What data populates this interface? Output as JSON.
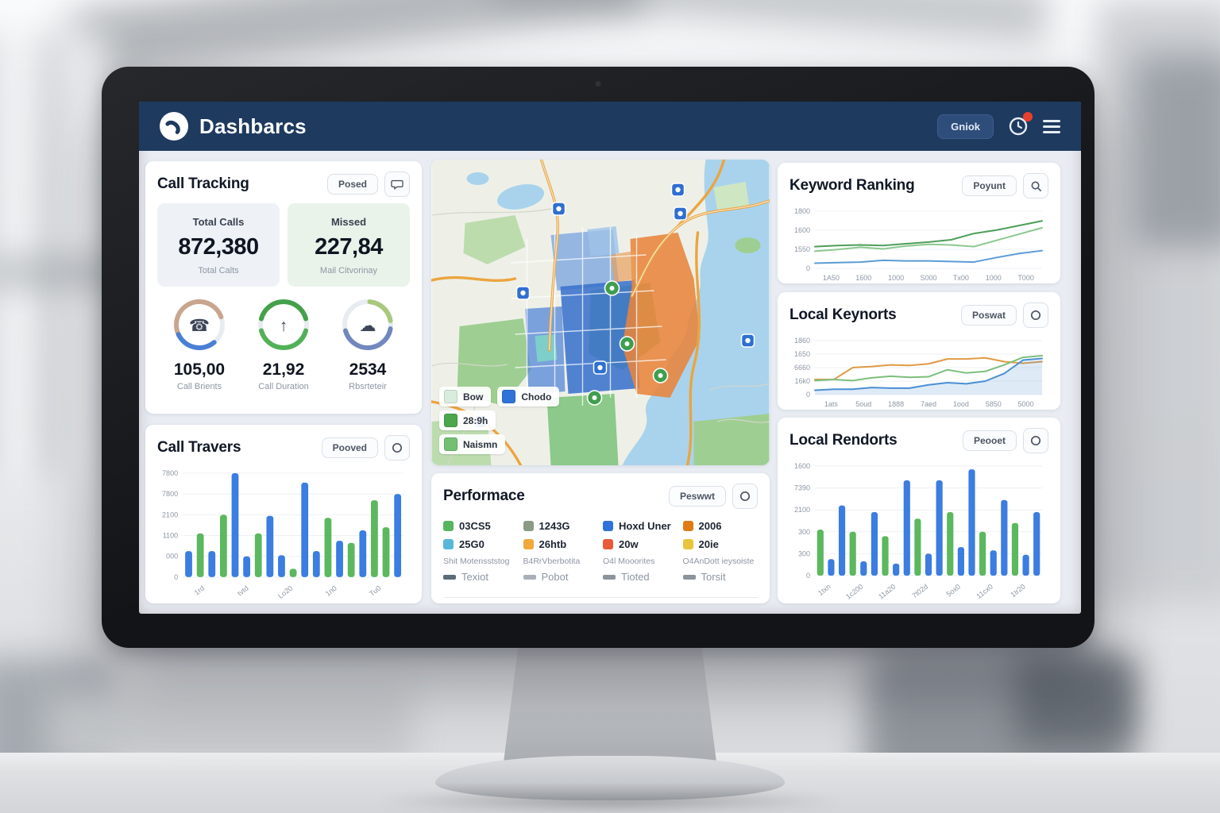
{
  "colors": {
    "header_navy": "#1e3a5f",
    "panel_bg": "#ffffff",
    "dashboard_bg": "#e9edf3",
    "bar_blue": "#3b7de0",
    "bar_green": "#5cb85e",
    "line_dark_green": "#4e9e5a",
    "line_light_green": "#8cc88f",
    "line_blue": "#5b9bd5",
    "line_orange": "#e09a45",
    "notification_red": "#e8402f"
  },
  "header": {
    "title": "Dashbarcs",
    "logo_icon": "phone-icon",
    "action_button": "Gniok",
    "icons": [
      "clock-icon",
      "menu-icon"
    ]
  },
  "panels": {
    "call_tracking": {
      "title": "Call Tracking",
      "button": "Posed",
      "action_icon": "chat-icon",
      "stats": [
        {
          "label": "Total Calls",
          "value": "872,380",
          "sub": "Total Calts",
          "bg": "#eef2f7"
        },
        {
          "label": "Missed",
          "value": "227,84",
          "sub": "Mail Citvorinay",
          "bg": "#e9f3ea"
        }
      ],
      "gauges": [
        {
          "value": "105,00",
          "label": "Call Brients",
          "icon": "phone-icon",
          "arcs": [
            {
              "color": "#c9a58f",
              "start": -120,
              "end": 70
            },
            {
              "color": "#4a7fd4",
              "start": 140,
              "end": 245
            }
          ]
        },
        {
          "value": "21,92",
          "label": "Call Duration",
          "icon": "arrow-up-icon",
          "arcs": [
            {
              "color": "#45a04b",
              "start": -75,
              "end": 75
            },
            {
              "color": "#52b158",
              "start": 105,
              "end": 255
            }
          ]
        },
        {
          "value": "2534",
          "label": "Rbsrteteir",
          "icon": "cloud-icon",
          "arcs": [
            {
              "color": "#a9c87c",
              "start": 5,
              "end": 80
            },
            {
              "color": "#7287bd",
              "start": 100,
              "end": 255
            }
          ]
        }
      ]
    },
    "call_travers": {
      "title": "Call Travers",
      "button": "Pooved",
      "action_icon": "circle-icon"
    },
    "map": {
      "legend": [
        {
          "label": "Bow",
          "color": "#d9ecdc"
        },
        {
          "label": "Chodo",
          "color": "#2f72d9"
        },
        {
          "label": "28:9h",
          "color": "#4ca64c"
        },
        {
          "label": "Naismn",
          "color": "#72bf72"
        }
      ]
    },
    "performance": {
      "title": "Performace",
      "button": "Peswwt",
      "action_icon": "circle-icon",
      "columns": [
        {
          "swatches": [
            {
              "color": "#56b55e",
              "label": "03CS5"
            },
            {
              "color": "#58b7d8",
              "label": "25G0"
            }
          ],
          "sub": "Shit Motensststog",
          "foot": {
            "color": "#5c6b78",
            "label": "Texiot"
          }
        },
        {
          "swatches": [
            {
              "color": "#8a9b84",
              "label": "1243G"
            },
            {
              "color": "#f2a93b",
              "label": "26htb"
            }
          ],
          "sub": "B4RrVberbotita",
          "foot": {
            "color": "#a9b0b8",
            "label": "Pobot"
          }
        },
        {
          "swatches": [
            {
              "color": "#2f72d9",
              "label": "Hoxd Uner"
            },
            {
              "color": "#e85a38",
              "label": "20w"
            }
          ],
          "sub": "O4l Mooorites",
          "foot": {
            "color": "#8b949c",
            "label": "Tioted"
          }
        },
        {
          "swatches": [
            {
              "color": "#e07b14",
              "label": "2006"
            },
            {
              "color": "#e9c53c",
              "label": "20ie"
            }
          ],
          "sub": "O4AnDott ieysoiste",
          "foot": {
            "color": "#8b949c",
            "label": "Torsit"
          }
        }
      ]
    },
    "keyword_ranking": {
      "title": "Keyword Ranking",
      "button": "Poyunt",
      "action_icon": "search-icon"
    },
    "local_keywords": {
      "title": "Local Keynorts",
      "button": "Poswat",
      "action_icon": "circle-icon"
    },
    "local_rendorts": {
      "title": "Local Rendorts",
      "button": "Peooet",
      "action_icon": "circle-icon"
    }
  },
  "chart_data": [
    {
      "id": "call_travers",
      "type": "bar",
      "title": "Call Travers",
      "yticks": [
        "7800",
        "7800",
        "2100",
        "1100",
        "000",
        "0"
      ],
      "xticks": [
        "1rd",
        "tvtd",
        "Lo20",
        "1n0",
        "Tu0"
      ],
      "rotate_x": true,
      "ylim": [
        0,
        100
      ],
      "grid": true,
      "colors": {
        "blue": "#3b7de0",
        "green": "#5cb85e"
      },
      "bars": [
        {
          "color": "blue",
          "value": 25
        },
        {
          "color": "green",
          "value": 42
        },
        {
          "color": "blue",
          "value": 25
        },
        {
          "color": "green",
          "value": 60
        },
        {
          "color": "blue",
          "value": 100
        },
        {
          "color": "blue",
          "value": 20
        },
        {
          "color": "green",
          "value": 42
        },
        {
          "color": "blue",
          "value": 59
        },
        {
          "color": "blue",
          "value": 21
        },
        {
          "color": "green",
          "value": 8
        },
        {
          "color": "blue",
          "value": 91
        },
        {
          "color": "blue",
          "value": 25
        },
        {
          "color": "green",
          "value": 57
        },
        {
          "color": "blue",
          "value": 35
        },
        {
          "color": "green",
          "value": 33
        },
        {
          "color": "blue",
          "value": 45
        },
        {
          "color": "green",
          "value": 74
        },
        {
          "color": "green",
          "value": 48
        },
        {
          "color": "blue",
          "value": 80
        }
      ]
    },
    {
      "id": "keyword_ranking",
      "type": "line",
      "title": "Keyword Ranking",
      "yticks": [
        "1800",
        "1600",
        "1550",
        "0"
      ],
      "xticks": [
        "1A50",
        "1600",
        "1000",
        "S000",
        "Tx00",
        "1000",
        "T000"
      ],
      "rotate_x": false,
      "ylim": [
        0,
        100
      ],
      "grid": true,
      "legend_position": "none",
      "series": [
        {
          "name": "dark-green",
          "color": "#4e9e5a",
          "values": [
            38,
            40,
            41,
            40,
            43,
            46,
            50,
            61,
            67,
            75,
            83
          ]
        },
        {
          "name": "light-green",
          "color": "#8cc88f",
          "values": [
            30,
            33,
            37,
            34,
            39,
            42,
            41,
            38,
            49,
            60,
            71
          ]
        },
        {
          "name": "blue",
          "color": "#5b9bd5",
          "values": [
            9,
            10,
            11,
            14,
            13,
            13,
            12,
            11,
            19,
            26,
            31
          ]
        }
      ]
    },
    {
      "id": "local_keywords",
      "type": "line",
      "title": "Local Keynorts",
      "yticks": [
        "1860",
        "1650",
        "6660",
        "16k0",
        "0"
      ],
      "xticks": [
        "1ats",
        "5oud",
        "1888",
        "7aed",
        "1ood",
        "5850",
        "5000"
      ],
      "rotate_x": false,
      "ylim": [
        0,
        100
      ],
      "grid": true,
      "legend_position": "none",
      "series": [
        {
          "name": "orange",
          "color": "#e09a45",
          "values": [
            28,
            28,
            50,
            52,
            55,
            54,
            57,
            66,
            66,
            68,
            61,
            58,
            61
          ]
        },
        {
          "name": "green",
          "color": "#7cbf7c",
          "values": [
            26,
            28,
            26,
            31,
            34,
            32,
            33,
            46,
            40,
            43,
            55,
            69,
            72
          ]
        },
        {
          "name": "blue",
          "color": "#4a8fd4",
          "area": true,
          "values": [
            8,
            10,
            10,
            13,
            12,
            12,
            18,
            22,
            20,
            25,
            39,
            64,
            67
          ]
        }
      ]
    },
    {
      "id": "local_rendorts",
      "type": "bar",
      "title": "Local Rendorts",
      "yticks": [
        "1600",
        "7390",
        "2100",
        "300",
        "300",
        "0"
      ],
      "xticks": [
        "1txn",
        "1c200",
        "11a20",
        "7t02d",
        "5ox0",
        "11cx0",
        "1tr20"
      ],
      "rotate_x": true,
      "ylim": [
        0,
        100
      ],
      "grid": true,
      "colors": {
        "blue": "#3b7de0",
        "green": "#5cb85e"
      },
      "bars": [
        {
          "color": "green",
          "value": 42
        },
        {
          "color": "blue",
          "value": 15
        },
        {
          "color": "blue",
          "value": 64
        },
        {
          "color": "green",
          "value": 40
        },
        {
          "color": "blue",
          "value": 13
        },
        {
          "color": "blue",
          "value": 58
        },
        {
          "color": "green",
          "value": 36
        },
        {
          "color": "blue",
          "value": 11
        },
        {
          "color": "blue",
          "value": 87
        },
        {
          "color": "green",
          "value": 52
        },
        {
          "color": "blue",
          "value": 20
        },
        {
          "color": "blue",
          "value": 87
        },
        {
          "color": "green",
          "value": 58
        },
        {
          "color": "blue",
          "value": 26
        },
        {
          "color": "blue",
          "value": 97
        },
        {
          "color": "green",
          "value": 40
        },
        {
          "color": "blue",
          "value": 23
        },
        {
          "color": "blue",
          "value": 69
        },
        {
          "color": "green",
          "value": 48
        },
        {
          "color": "blue",
          "value": 19
        },
        {
          "color": "blue",
          "value": 58
        }
      ]
    }
  ]
}
